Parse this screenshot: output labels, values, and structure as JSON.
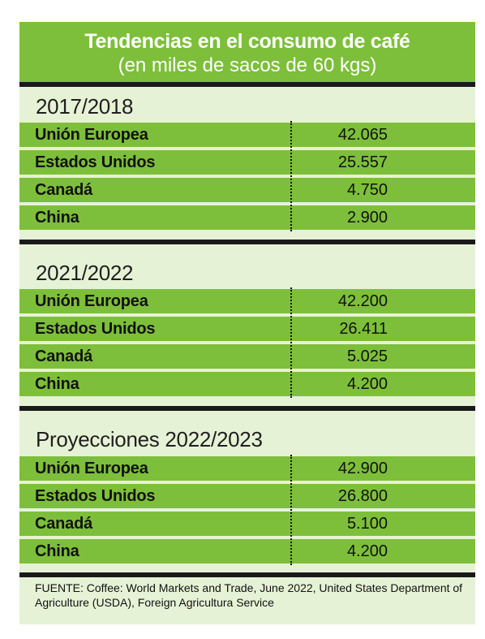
{
  "title": "Tendencias en el consumo de café",
  "subtitle": "(en miles de sacos de 60 kgs)",
  "colors": {
    "accent_green": "#7dbf3a",
    "panel_bg": "#e6f2d5",
    "rule": "#1a1a1a"
  },
  "chart_data": {
    "type": "table",
    "title": "Tendencias en el consumo de café",
    "subtitle": "(en miles de sacos de 60 kgs)",
    "sections": [
      {
        "period": "2017/2018",
        "rows": [
          {
            "country": "Unión Europea",
            "value_text": "42.065",
            "value": 42065
          },
          {
            "country": "Estados Unidos",
            "value_text": "25.557",
            "value": 25557
          },
          {
            "country": "Canadá",
            "value_text": "4.750",
            "value": 4750
          },
          {
            "country": "China",
            "value_text": "2.900",
            "value": 2900
          }
        ]
      },
      {
        "period": "2021/2022",
        "rows": [
          {
            "country": "Unión Europea",
            "value_text": "42.200",
            "value": 42200
          },
          {
            "country": "Estados Unidos",
            "value_text": "26.411",
            "value": 26411
          },
          {
            "country": "Canadá",
            "value_text": "5.025",
            "value": 5025
          },
          {
            "country": "China",
            "value_text": "4.200",
            "value": 4200
          }
        ]
      },
      {
        "period": "Proyecciones 2022/2023",
        "rows": [
          {
            "country": "Unión Europea",
            "value_text": "42.900",
            "value": 42900
          },
          {
            "country": "Estados Unidos",
            "value_text": "26.800",
            "value": 26800
          },
          {
            "country": "Canadá",
            "value_text": "5.100",
            "value": 5100
          },
          {
            "country": "China",
            "value_text": "4.200",
            "value": 4200
          }
        ]
      }
    ],
    "source": "FUENTE: Coffee: World Markets and Trade, June 2022, United States Department of Agriculture (USDA), Foreign Agricultura Service"
  }
}
